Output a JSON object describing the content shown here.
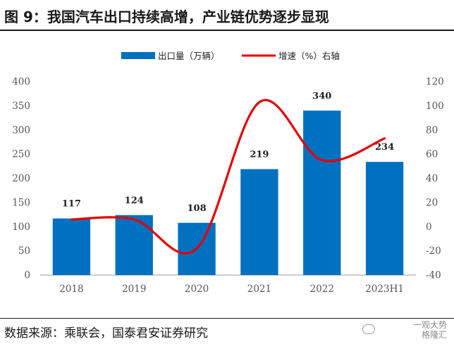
{
  "title": "图 9：我国汽车出口持续高增，产业链优势逐步显现",
  "source": "数据来源：乘联会，国泰君安证券研究",
  "watermark": {
    "line1": "一观大势",
    "line2": "格隆汇"
  },
  "colors": {
    "bar": "#0070c0",
    "line": "#e30000",
    "axis": "#555555",
    "text": "#222222"
  },
  "chart_data": {
    "type": "bar",
    "categories": [
      "2018",
      "2019",
      "2020",
      "2021",
      "2022",
      "2023H1"
    ],
    "series": [
      {
        "name": "出口量（万辆）",
        "type": "bar",
        "axis": "left",
        "values": [
          117,
          124,
          108,
          219,
          340,
          234
        ],
        "data_labels": [
          "117",
          "124",
          "108",
          "219",
          "340",
          "234"
        ]
      },
      {
        "name": "增速（%）右轴",
        "type": "line",
        "axis": "right",
        "smooth": true,
        "values": [
          6,
          6,
          -18,
          103,
          55,
          73
        ]
      }
    ],
    "y_left": {
      "range": [
        0,
        400
      ],
      "ticks": [
        "0",
        "50",
        "100",
        "150",
        "200",
        "250",
        "300",
        "350",
        "400"
      ]
    },
    "y_right": {
      "range": [
        -40,
        120
      ],
      "ticks": [
        "-40",
        "-20",
        "0",
        "20",
        "40",
        "60",
        "80",
        "100",
        "120"
      ]
    },
    "legend_position": "top",
    "grid": false
  }
}
